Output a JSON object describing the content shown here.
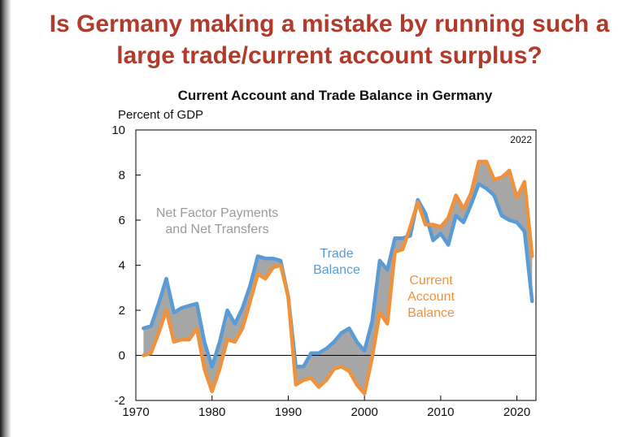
{
  "slide": {
    "title_line1": "Is Germany making a mistake by running such a",
    "title_line2": "large trade/current account surplus?"
  },
  "chart_data": {
    "type": "line",
    "title": "Current Account and Trade Balance in Germany",
    "ylabel": "Percent of GDP",
    "xlabel": "",
    "xlim": [
      1970,
      2022.5
    ],
    "ylim": [
      -2,
      10
    ],
    "xticks": [
      1970,
      1980,
      1990,
      2000,
      2010,
      2020
    ],
    "yticks": [
      -2,
      0,
      2,
      4,
      6,
      8,
      10
    ],
    "corner_label": "2022",
    "grid": false,
    "shaded_area_label": [
      "Net Factor Payments",
      "and Net Transfers"
    ],
    "x": [
      1971,
      1972,
      1973,
      1974,
      1975,
      1976,
      1977,
      1978,
      1979,
      1980,
      1981,
      1982,
      1983,
      1984,
      1985,
      1986,
      1987,
      1988,
      1989,
      1990,
      1991,
      1992,
      1993,
      1994,
      1995,
      1996,
      1997,
      1998,
      1999,
      2000,
      2001,
      2002,
      2003,
      2004,
      2005,
      2006,
      2007,
      2008,
      2009,
      2010,
      2011,
      2012,
      2013,
      2014,
      2015,
      2016,
      2017,
      2018,
      2019,
      2020,
      2021,
      2022
    ],
    "series": [
      {
        "name": "Trade Balance",
        "label_lines": [
          "Trade",
          "Balance"
        ],
        "color": "#5b9bd5",
        "values": [
          1.2,
          1.3,
          2.3,
          3.4,
          1.9,
          2.1,
          2.2,
          2.3,
          0.6,
          -0.5,
          0.6,
          2.0,
          1.4,
          2.1,
          3.1,
          4.4,
          4.3,
          4.3,
          4.2,
          2.6,
          -0.5,
          -0.5,
          0.1,
          0.1,
          0.3,
          0.6,
          1.0,
          1.2,
          0.6,
          0.2,
          1.5,
          4.2,
          3.8,
          5.2,
          5.2,
          5.3,
          6.9,
          6.3,
          5.1,
          5.4,
          4.9,
          6.2,
          5.9,
          6.7,
          7.6,
          7.4,
          7.1,
          6.2,
          6.0,
          5.9,
          5.5,
          2.4
        ]
      },
      {
        "name": "Current Account Balance",
        "label_lines": [
          "Current",
          "Account",
          "Balance"
        ],
        "color": "#f0923b",
        "values": [
          0.0,
          0.1,
          1.0,
          2.0,
          0.6,
          0.7,
          0.7,
          1.2,
          -0.6,
          -1.6,
          -0.6,
          0.7,
          0.6,
          1.2,
          2.4,
          3.6,
          3.4,
          3.9,
          4.0,
          2.6,
          -1.3,
          -1.1,
          -1.0,
          -1.4,
          -1.1,
          -0.6,
          -0.5,
          -0.7,
          -1.3,
          -1.7,
          -0.1,
          1.9,
          1.4,
          4.6,
          4.7,
          5.7,
          6.8,
          5.8,
          5.8,
          5.7,
          6.1,
          7.1,
          6.5,
          7.2,
          8.6,
          8.6,
          7.8,
          7.9,
          8.2,
          7.0,
          7.7,
          4.4
        ]
      }
    ]
  }
}
